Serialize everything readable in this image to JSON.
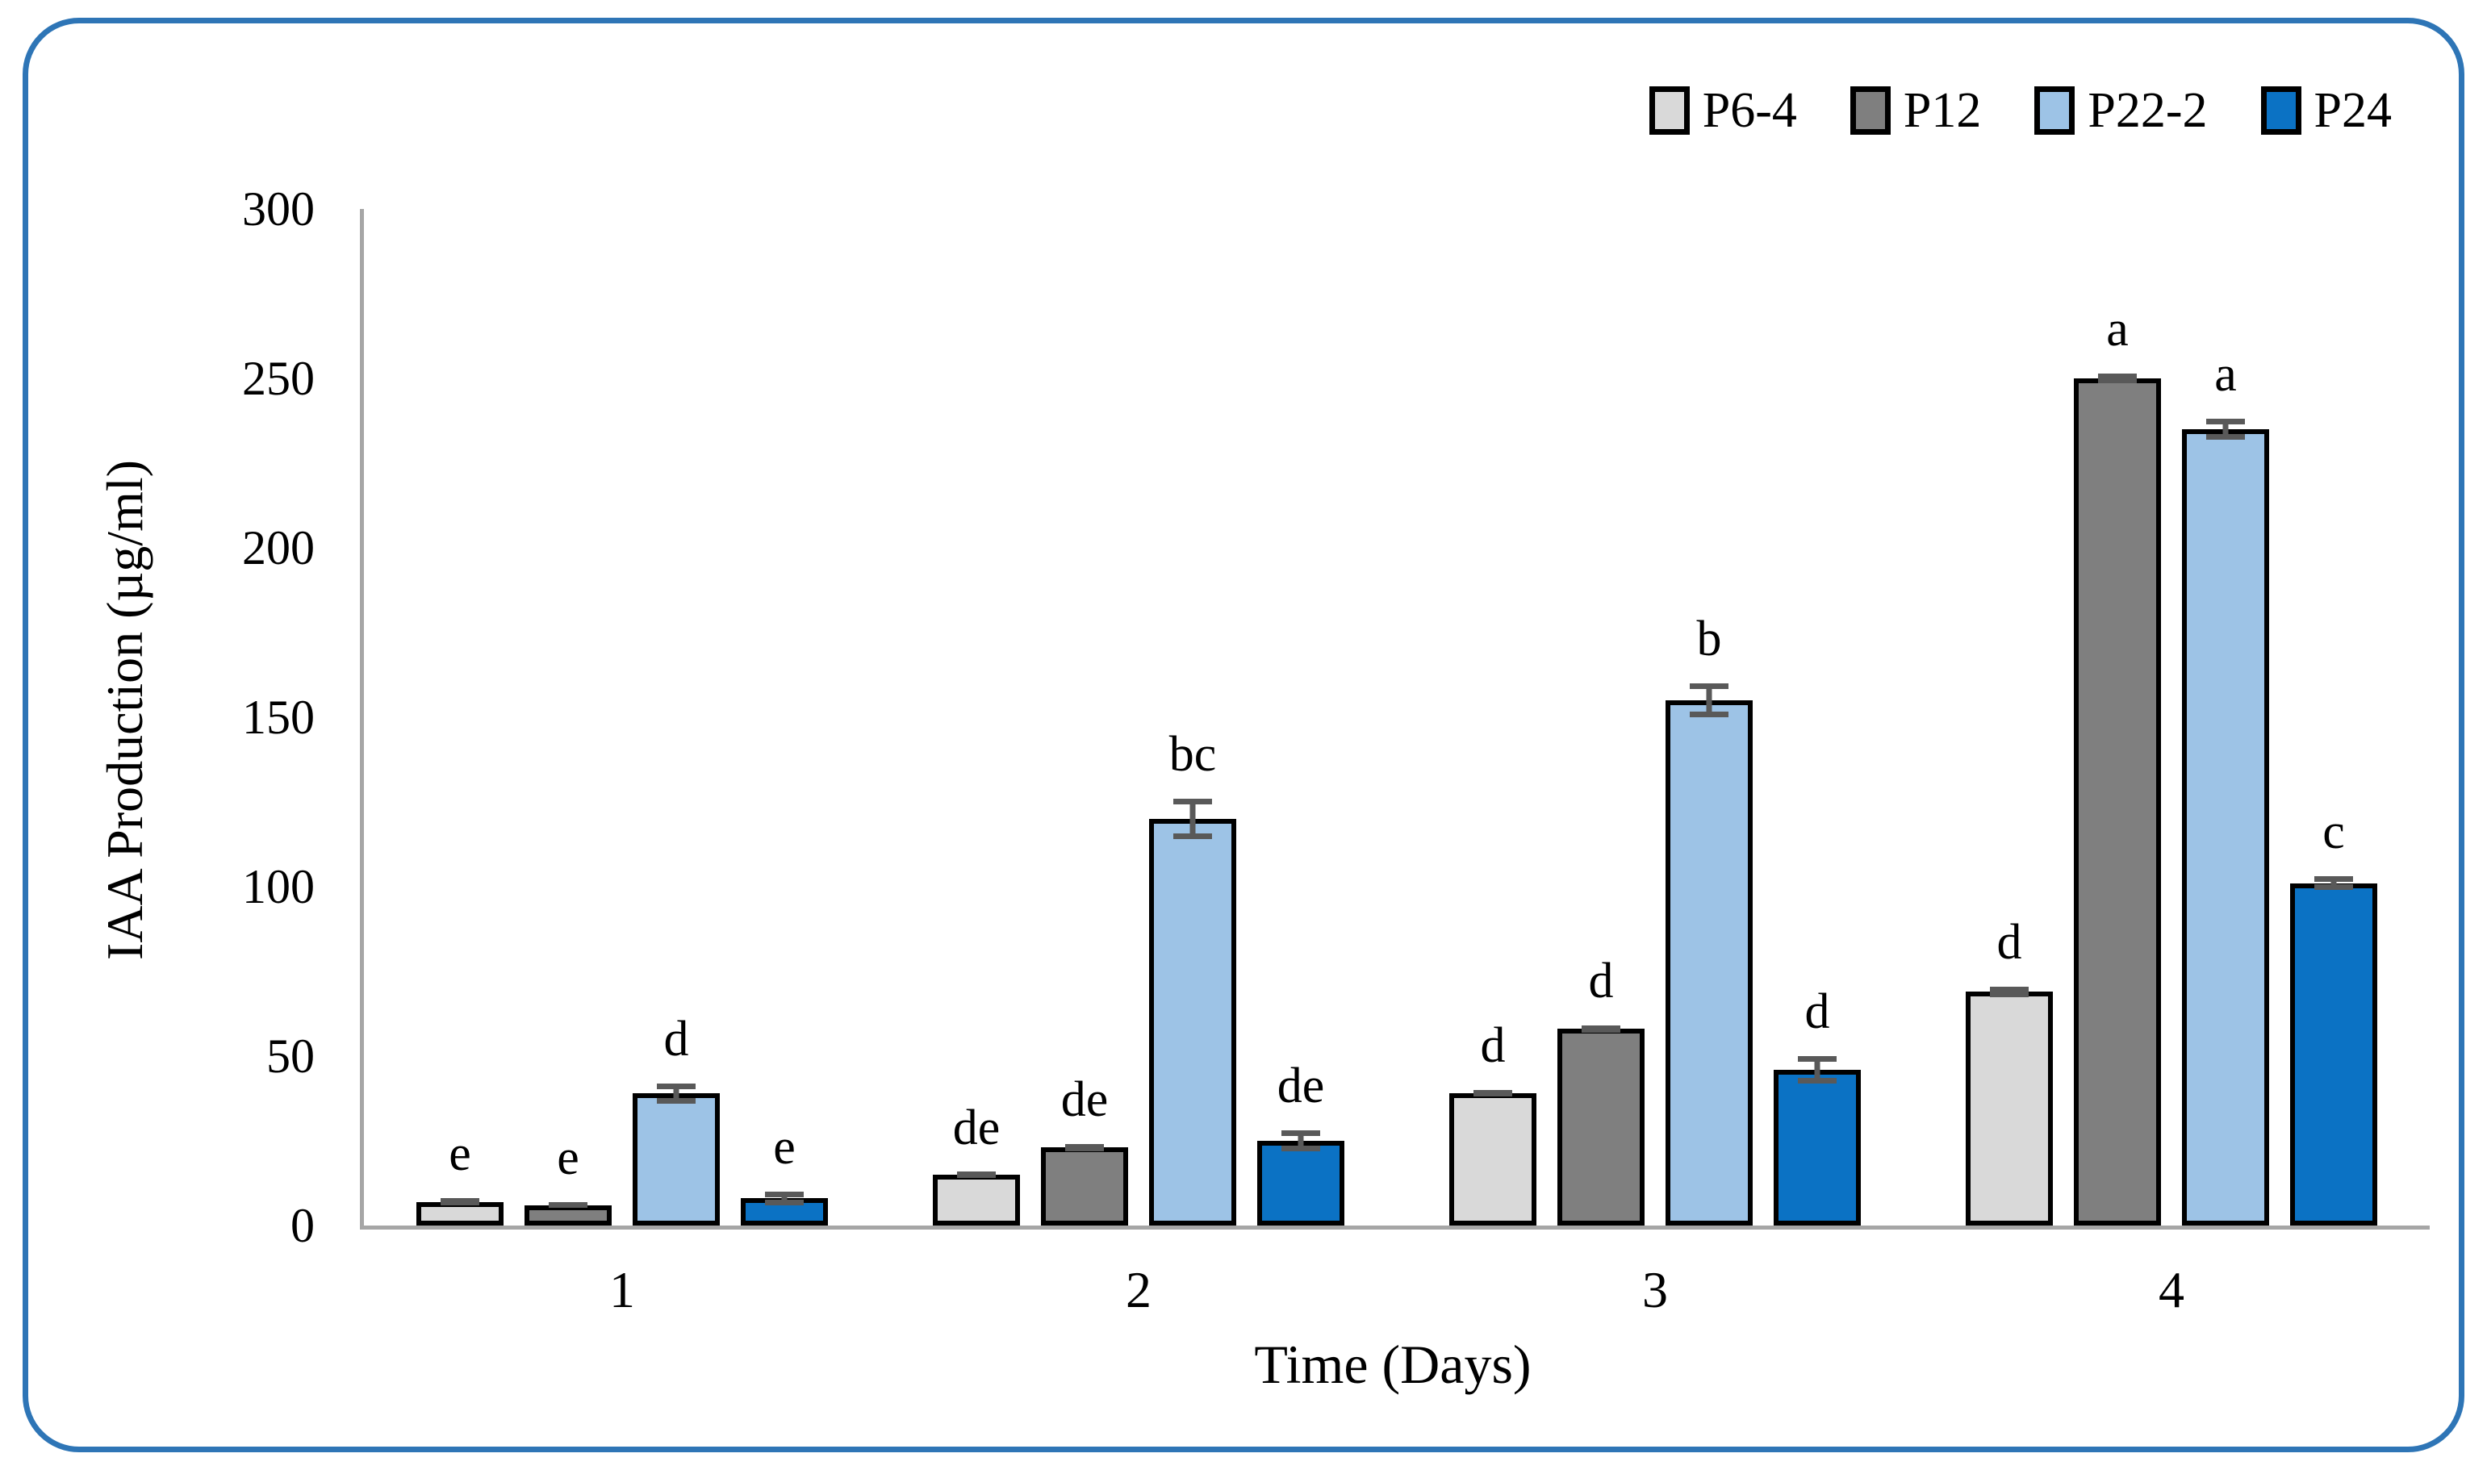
{
  "frame": {
    "border_color": "#2e75b6",
    "background": "#ffffff"
  },
  "chart_data": {
    "type": "bar",
    "title": "",
    "xlabel": "Time (Days)",
    "ylabel": "IAA Production (µg/ml)",
    "categories": [
      "1",
      "2",
      "3",
      "4"
    ],
    "ylim": [
      0,
      300
    ],
    "yticks": [
      0,
      50,
      100,
      150,
      200,
      250,
      300
    ],
    "grid": false,
    "legend_position": "top-right",
    "axis_color": "#a6a6a6",
    "error_bar_color": "#595959",
    "bar_border_color": "#000000",
    "series": [
      {
        "name": "P6-4",
        "color": "#d9d9d9",
        "values": [
          7,
          15,
          39,
          69
        ],
        "errors": [
          1,
          0.8,
          1,
          1.5
        ],
        "letters": [
          "e",
          "de",
          "d",
          "d"
        ]
      },
      {
        "name": "P12",
        "color": "#7f7f7f",
        "values": [
          6,
          23,
          58,
          250
        ],
        "errors": [
          0.8,
          1,
          1,
          1.5
        ],
        "letters": [
          "e",
          "de",
          "d",
          "a"
        ]
      },
      {
        "name": "P22-2",
        "color": "#9dc3e6",
        "values": [
          39,
          120,
          155,
          235
        ],
        "errors": [
          3,
          6,
          5,
          3
        ],
        "letters": [
          "d",
          "bc",
          "b",
          "a"
        ]
      },
      {
        "name": "P24",
        "color": "#0b72c4",
        "values": [
          8,
          25,
          46,
          101
        ],
        "errors": [
          2,
          3,
          4,
          2
        ],
        "letters": [
          "e",
          "de",
          "d",
          "c"
        ]
      }
    ]
  }
}
